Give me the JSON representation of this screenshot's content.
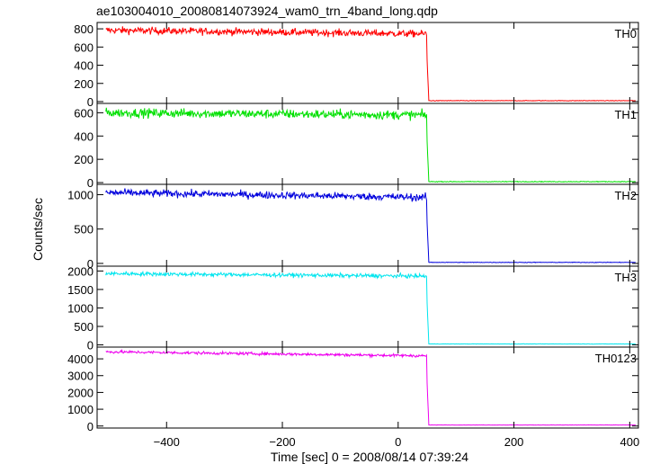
{
  "chart_data": {
    "type": "line",
    "title": "ae103004010_20080814073924_wam0_trn_4band_long.qdp",
    "xlabel": "Time [sec] 0 = 2008/08/14 07:39:24",
    "ylabel": "Counts/sec",
    "xlim": [
      -520,
      415
    ],
    "xticks": [
      -400,
      -200,
      0,
      200,
      400
    ],
    "xtick_labels": [
      "−400",
      "−200",
      "0",
      "200",
      "400"
    ],
    "drop_time": 50,
    "grid": false,
    "panels": [
      {
        "name": "TH0",
        "color": "#ff0000",
        "ylim": [
          -20,
          870
        ],
        "yticks": [
          0,
          200,
          400,
          600,
          800
        ],
        "ytick_labels": [
          "0",
          "200",
          "400",
          "600",
          "800"
        ],
        "start_level": 785,
        "end_level": 745,
        "noise": 28,
        "tail_level": 10
      },
      {
        "name": "TH1",
        "color": "#00e000",
        "ylim": [
          -15,
          680
        ],
        "yticks": [
          0,
          200,
          400,
          600
        ],
        "ytick_labels": [
          "0",
          "200",
          "400",
          "600"
        ],
        "start_level": 600,
        "end_level": 580,
        "noise": 28,
        "tail_level": 8
      },
      {
        "name": "TH2",
        "color": "#0000dd",
        "ylim": [
          -40,
          1150
        ],
        "yticks": [
          0,
          500,
          1000
        ],
        "ytick_labels": [
          "0",
          "500",
          "1000"
        ],
        "start_level": 1030,
        "end_level": 960,
        "noise": 38,
        "tail_level": 15
      },
      {
        "name": "TH3",
        "color": "#00e5ee",
        "ylim": [
          -60,
          2130
        ],
        "yticks": [
          0,
          500,
          1000,
          1500,
          2000
        ],
        "ytick_labels": [
          "0",
          "500",
          "1000",
          "1500",
          "2000"
        ],
        "start_level": 1930,
        "end_level": 1860,
        "noise": 38,
        "tail_level": 25
      },
      {
        "name": "TH0123",
        "color": "#ee00ee",
        "ylim": [
          -120,
          4700
        ],
        "yticks": [
          0,
          1000,
          2000,
          3000,
          4000
        ],
        "ytick_labels": [
          "0",
          "1000",
          "2000",
          "3000",
          "4000"
        ],
        "start_level": 4420,
        "end_level": 4180,
        "noise": 60,
        "tail_level": 60
      }
    ]
  }
}
